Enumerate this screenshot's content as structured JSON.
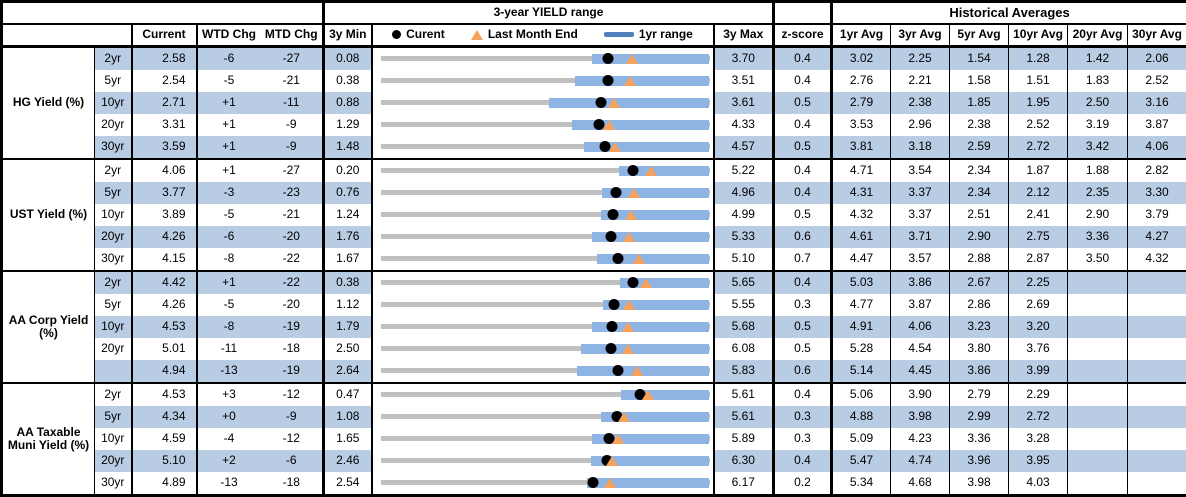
{
  "chart_data": {
    "type": "table",
    "embedded_chart_type": "bullet-range",
    "axis_note": "each row's bullet chart spans that row's 3y Min to 3y Max",
    "titles": {
      "range": "3-year YIELD range",
      "historical": "Historical Averages"
    },
    "columns": {
      "current": "Current",
      "wtd_chg": "WTD Chg",
      "mtd_chg": "MTD Chg",
      "min_3y": "3y Min",
      "max_3y": "3y Max",
      "z_score": "z-score",
      "avgs": [
        "1yr Avg",
        "3yr Avg",
        "5yr Avg",
        "10yr Avg",
        "20yr Avg",
        "30yr Avg"
      ]
    },
    "legend": {
      "current": "Curent",
      "last_month_end": "Last Month End",
      "range_1yr": "1yr range"
    },
    "colors": {
      "row_stripe": "#B8CCE4",
      "range_bar": "#8EB4E3",
      "track": "#C0C0C0",
      "current_dot": "#000000",
      "last_month_end_triangle": "#F7A25C",
      "legend_bar": "#4F81BD"
    },
    "sections": [
      {
        "label": "HG Yield (%)",
        "rows": [
          {
            "tenor": "2yr",
            "current": "2.58",
            "wtd_chg": "-6",
            "mtd_chg": "-27",
            "min_3y": "0.08",
            "max_3y": "3.70",
            "z_score": "0.4",
            "avgs": [
              "3.02",
              "2.25",
              "1.54",
              "1.28",
              "1.42",
              "2.06"
            ],
            "chart": {
              "bar_low": 2.41,
              "bar_high": 3.7,
              "dot": 2.58,
              "triangle": 2.85
            }
          },
          {
            "tenor": "5yr",
            "current": "2.54",
            "wtd_chg": "-5",
            "mtd_chg": "-21",
            "min_3y": "0.38",
            "max_3y": "3.51",
            "z_score": "0.4",
            "avgs": [
              "2.76",
              "2.21",
              "1.58",
              "1.51",
              "1.83",
              "2.52"
            ],
            "chart": {
              "bar_low": 2.23,
              "bar_high": 3.51,
              "dot": 2.54,
              "triangle": 2.75
            }
          },
          {
            "tenor": "10yr",
            "current": "2.71",
            "wtd_chg": "+1",
            "mtd_chg": "-11",
            "min_3y": "0.88",
            "max_3y": "3.61",
            "z_score": "0.5",
            "avgs": [
              "2.79",
              "2.38",
              "1.85",
              "1.95",
              "2.50",
              "3.16"
            ],
            "chart": {
              "bar_low": 2.28,
              "bar_high": 3.61,
              "dot": 2.71,
              "triangle": 2.82
            }
          },
          {
            "tenor": "20yr",
            "current": "3.31",
            "wtd_chg": "+1",
            "mtd_chg": "-9",
            "min_3y": "1.29",
            "max_3y": "4.33",
            "z_score": "0.4",
            "avgs": [
              "3.53",
              "2.96",
              "2.38",
              "2.52",
              "3.19",
              "3.87"
            ],
            "chart": {
              "bar_low": 3.06,
              "bar_high": 4.33,
              "dot": 3.31,
              "triangle": 3.4
            }
          },
          {
            "tenor": "30yr",
            "current": "3.59",
            "wtd_chg": "+1",
            "mtd_chg": "-9",
            "min_3y": "1.48",
            "max_3y": "4.57",
            "z_score": "0.5",
            "avgs": [
              "3.81",
              "3.18",
              "2.59",
              "2.72",
              "3.42",
              "4.06"
            ],
            "chart": {
              "bar_low": 3.39,
              "bar_high": 4.57,
              "dot": 3.59,
              "triangle": 3.68
            }
          }
        ]
      },
      {
        "label": "UST Yield (%)",
        "rows": [
          {
            "tenor": "2yr",
            "current": "4.06",
            "wtd_chg": "+1",
            "mtd_chg": "-27",
            "min_3y": "0.20",
            "max_3y": "5.22",
            "z_score": "0.4",
            "avgs": [
              "4.71",
              "3.54",
              "2.34",
              "1.87",
              "1.88",
              "2.82"
            ],
            "chart": {
              "bar_low": 3.84,
              "bar_high": 5.22,
              "dot": 4.06,
              "triangle": 4.33
            }
          },
          {
            "tenor": "5yr",
            "current": "3.77",
            "wtd_chg": "-3",
            "mtd_chg": "-23",
            "min_3y": "0.76",
            "max_3y": "4.96",
            "z_score": "0.4",
            "avgs": [
              "4.31",
              "3.37",
              "2.34",
              "2.12",
              "2.35",
              "3.30"
            ],
            "chart": {
              "bar_low": 3.59,
              "bar_high": 4.96,
              "dot": 3.77,
              "triangle": 4.0
            }
          },
          {
            "tenor": "10yr",
            "current": "3.89",
            "wtd_chg": "-5",
            "mtd_chg": "-21",
            "min_3y": "1.24",
            "max_3y": "4.99",
            "z_score": "0.5",
            "avgs": [
              "4.32",
              "3.37",
              "2.51",
              "2.41",
              "2.90",
              "3.79"
            ],
            "chart": {
              "bar_low": 3.75,
              "bar_high": 4.99,
              "dot": 3.89,
              "triangle": 4.1
            }
          },
          {
            "tenor": "20yr",
            "current": "4.26",
            "wtd_chg": "-6",
            "mtd_chg": "-20",
            "min_3y": "1.76",
            "max_3y": "5.33",
            "z_score": "0.6",
            "avgs": [
              "4.61",
              "3.71",
              "2.90",
              "2.75",
              "3.36",
              "4.27"
            ],
            "chart": {
              "bar_low": 4.06,
              "bar_high": 5.33,
              "dot": 4.26,
              "triangle": 4.46
            }
          },
          {
            "tenor": "30yr",
            "current": "4.15",
            "wtd_chg": "-8",
            "mtd_chg": "-22",
            "min_3y": "1.67",
            "max_3y": "5.10",
            "z_score": "0.7",
            "avgs": [
              "4.47",
              "3.57",
              "2.88",
              "2.87",
              "3.50",
              "4.32"
            ],
            "chart": {
              "bar_low": 3.93,
              "bar_high": 5.1,
              "dot": 4.15,
              "triangle": 4.37
            }
          }
        ]
      },
      {
        "label": "AA Corp Yield (%)",
        "rows": [
          {
            "tenor": "2yr",
            "current": "4.42",
            "wtd_chg": "+1",
            "mtd_chg": "-22",
            "min_3y": "0.38",
            "max_3y": "5.65",
            "z_score": "0.4",
            "avgs": [
              "5.03",
              "3.86",
              "2.67",
              "2.25",
              "",
              ""
            ],
            "chart": {
              "bar_low": 4.22,
              "bar_high": 5.65,
              "dot": 4.42,
              "triangle": 4.64
            }
          },
          {
            "tenor": "5yr",
            "current": "4.26",
            "wtd_chg": "-5",
            "mtd_chg": "-20",
            "min_3y": "1.12",
            "max_3y": "5.55",
            "z_score": "0.3",
            "avgs": [
              "4.77",
              "3.87",
              "2.86",
              "2.69",
              "",
              ""
            ],
            "chart": {
              "bar_low": 4.12,
              "bar_high": 5.55,
              "dot": 4.26,
              "triangle": 4.46
            }
          },
          {
            "tenor": "10yr",
            "current": "4.53",
            "wtd_chg": "-8",
            "mtd_chg": "-19",
            "min_3y": "1.79",
            "max_3y": "5.68",
            "z_score": "0.5",
            "avgs": [
              "4.91",
              "4.06",
              "3.23",
              "3.20",
              "",
              ""
            ],
            "chart": {
              "bar_low": 4.29,
              "bar_high": 5.68,
              "dot": 4.53,
              "triangle": 4.72
            }
          },
          {
            "tenor": "20yr",
            "current": "5.01",
            "wtd_chg": "-11",
            "mtd_chg": "-18",
            "min_3y": "2.50",
            "max_3y": "6.08",
            "z_score": "0.5",
            "avgs": [
              "5.28",
              "4.54",
              "3.80",
              "3.76",
              "",
              ""
            ],
            "chart": {
              "bar_low": 4.68,
              "bar_high": 6.08,
              "dot": 5.01,
              "triangle": 5.19
            }
          },
          {
            "tenor": "",
            "current": "4.94",
            "wtd_chg": "-13",
            "mtd_chg": "-19",
            "min_3y": "2.64",
            "max_3y": "5.83",
            "z_score": "0.6",
            "avgs": [
              "5.14",
              "4.45",
              "3.86",
              "3.99",
              "",
              ""
            ],
            "chart": {
              "bar_low": 4.55,
              "bar_high": 5.83,
              "dot": 4.94,
              "triangle": 5.13
            }
          }
        ]
      },
      {
        "label": "AA Taxable Muni Yield (%)",
        "rows": [
          {
            "tenor": "2yr",
            "current": "4.53",
            "wtd_chg": "+3",
            "mtd_chg": "-12",
            "min_3y": "0.47",
            "max_3y": "5.61",
            "z_score": "0.4",
            "avgs": [
              "5.06",
              "3.90",
              "2.79",
              "2.29",
              "",
              ""
            ],
            "chart": {
              "bar_low": 4.22,
              "bar_high": 5.61,
              "dot": 4.53,
              "triangle": 4.65
            }
          },
          {
            "tenor": "5yr",
            "current": "4.34",
            "wtd_chg": "+0",
            "mtd_chg": "-9",
            "min_3y": "1.08",
            "max_3y": "5.61",
            "z_score": "0.3",
            "avgs": [
              "4.88",
              "3.98",
              "2.99",
              "2.72",
              "",
              ""
            ],
            "chart": {
              "bar_low": 4.11,
              "bar_high": 5.61,
              "dot": 4.34,
              "triangle": 4.43
            }
          },
          {
            "tenor": "10yr",
            "current": "4.59",
            "wtd_chg": "-4",
            "mtd_chg": "-12",
            "min_3y": "1.65",
            "max_3y": "5.89",
            "z_score": "0.3",
            "avgs": [
              "5.09",
              "4.23",
              "3.36",
              "3.28",
              "",
              ""
            ],
            "chart": {
              "bar_low": 4.38,
              "bar_high": 5.89,
              "dot": 4.59,
              "triangle": 4.71
            }
          },
          {
            "tenor": "20yr",
            "current": "5.10",
            "wtd_chg": "+2",
            "mtd_chg": "-6",
            "min_3y": "2.46",
            "max_3y": "6.30",
            "z_score": "0.4",
            "avgs": [
              "5.47",
              "4.74",
              "3.96",
              "3.95",
              "",
              ""
            ],
            "chart": {
              "bar_low": 4.92,
              "bar_high": 6.3,
              "dot": 5.1,
              "triangle": 5.16
            }
          },
          {
            "tenor": "30yr",
            "current": "4.89",
            "wtd_chg": "-13",
            "mtd_chg": "-18",
            "min_3y": "2.54",
            "max_3y": "6.17",
            "z_score": "0.2",
            "avgs": [
              "5.34",
              "4.68",
              "3.98",
              "4.03",
              "",
              ""
            ],
            "chart": {
              "bar_low": 4.82,
              "bar_high": 6.17,
              "dot": 4.89,
              "triangle": 5.07
            }
          }
        ]
      }
    ]
  }
}
